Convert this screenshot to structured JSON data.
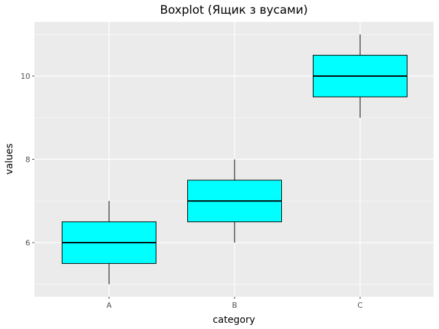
{
  "chart_data": {
    "type": "boxplot",
    "title": "Boxplot (Ящик з вусами)",
    "xlabel": "category",
    "ylabel": "values",
    "categories": [
      "A",
      "B",
      "C"
    ],
    "boxes": [
      {
        "category": "A",
        "min": 5,
        "q1": 5.5,
        "median": 6,
        "q3": 6.5,
        "max": 7
      },
      {
        "category": "B",
        "min": 6,
        "q1": 6.5,
        "median": 7,
        "q3": 7.5,
        "max": 8
      },
      {
        "category": "C",
        "min": 9,
        "q1": 9.5,
        "median": 10,
        "q3": 10.5,
        "max": 11
      }
    ],
    "ylim": [
      4.7,
      11.3
    ],
    "y_ticks": [
      6,
      8,
      10
    ],
    "y_minor_ticks": [
      5,
      7,
      9,
      11
    ],
    "grid": true,
    "colors": {
      "panel_background": "#ebebeb",
      "grid": "#ffffff",
      "box_fill": "#00ffff",
      "box_stroke": "#000000"
    }
  }
}
